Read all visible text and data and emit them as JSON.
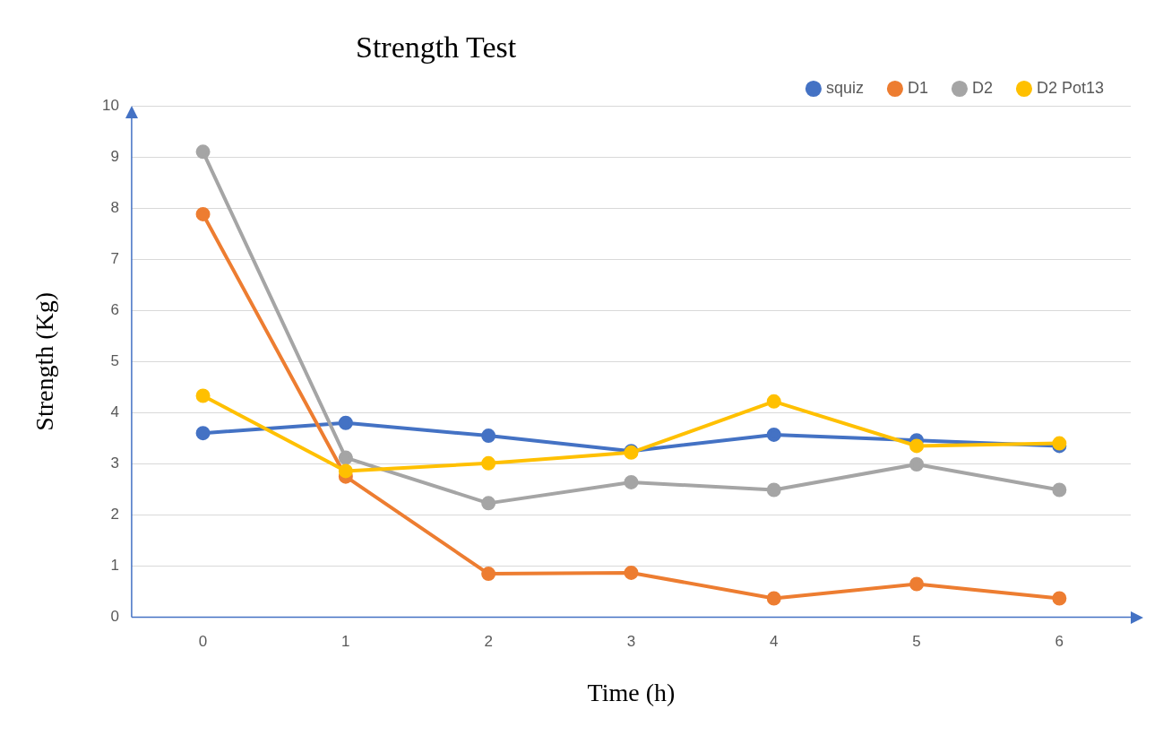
{
  "chart_data": {
    "type": "line",
    "title": "Strength Test",
    "xlabel": "Time (h)",
    "ylabel": "Strength (Kg)",
    "categories": [
      "0",
      "1",
      "2",
      "3",
      "4",
      "5",
      "6"
    ],
    "series": [
      {
        "name": "squiz",
        "color": "#4472c4",
        "values": [
          3.6,
          3.8,
          3.55,
          3.25,
          3.57,
          3.46,
          3.35
        ]
      },
      {
        "name": "D1",
        "color": "#ed7d31",
        "values": [
          7.88,
          2.75,
          0.85,
          0.87,
          0.37,
          0.65,
          0.37
        ]
      },
      {
        "name": "D2",
        "color": "#a5a5a5",
        "values": [
          9.1,
          3.12,
          2.23,
          2.64,
          2.49,
          2.99,
          2.49
        ]
      },
      {
        "name": "D2 Pot13",
        "color": "#ffc000",
        "values": [
          4.33,
          2.86,
          3.01,
          3.22,
          4.22,
          3.35,
          3.4
        ]
      }
    ],
    "ylim": [
      0,
      10
    ],
    "yticks": [
      0,
      1,
      2,
      3,
      4,
      5,
      6,
      7,
      8,
      9,
      10
    ],
    "grid": "y",
    "legend": "top right",
    "marker": "circle",
    "line_style": "solid"
  }
}
